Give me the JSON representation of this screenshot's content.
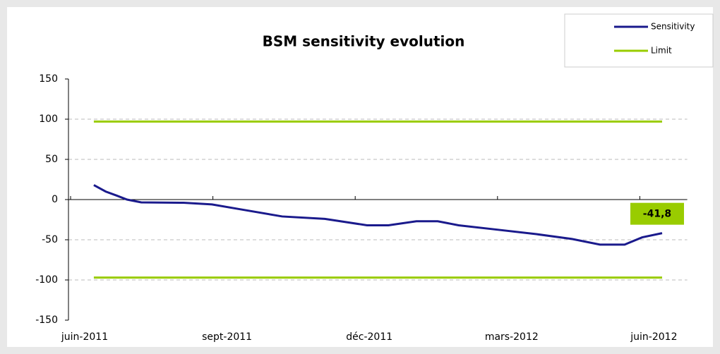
{
  "chart_data": {
    "type": "line",
    "title": "BSM sensitivity evolution",
    "xlim": [
      0,
      13
    ],
    "xticks": [
      {
        "value": 0,
        "label": "juin-2011"
      },
      {
        "value": 3,
        "label": "sept-2011"
      },
      {
        "value": 6,
        "label": "déc-2011"
      },
      {
        "value": 9,
        "label": "mars-2012"
      },
      {
        "value": 12,
        "label": "juin-2012"
      }
    ],
    "ylim": [
      -150,
      150
    ],
    "yticks": [
      -150,
      -100,
      -50,
      0,
      50,
      100,
      150
    ],
    "grid": true,
    "legend": "top-right",
    "series": [
      {
        "name": "Sensitivity",
        "color": "#1a1a8c",
        "x": [
          0.49,
          0.74,
          0.97,
          1.19,
          1.49,
          2.38,
          2.98,
          3.57,
          4.46,
          5.36,
          6.25,
          6.7,
          7.29,
          7.74,
          8.18,
          8.93,
          9.82,
          10.57,
          11.16,
          11.68,
          12.05,
          12.47
        ],
        "values": [
          18,
          10,
          5,
          0,
          -3.5,
          -4,
          -6,
          -12,
          -21,
          -24,
          -32,
          -32,
          -27,
          -27,
          -32,
          -37,
          -43,
          -49,
          -56,
          -56,
          -47,
          -41.8
        ],
        "value_labels": [
          null,
          null,
          null,
          null,
          null,
          null,
          null,
          null,
          null,
          null,
          null,
          null,
          null,
          null,
          null,
          null,
          null,
          null,
          null,
          null,
          null,
          "-41,8"
        ]
      },
      {
        "name": "Limit",
        "color": "#99cc00",
        "x": [
          0.49,
          12.47
        ],
        "values": [
          97,
          97
        ]
      },
      {
        "name": "Limit",
        "color": "#99cc00",
        "x": [
          0.49,
          12.47
        ],
        "values": [
          -97,
          -97
        ]
      }
    ]
  }
}
